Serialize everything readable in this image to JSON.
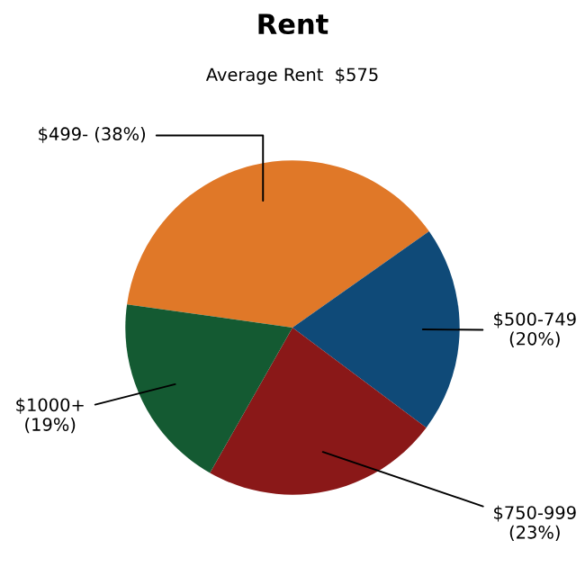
{
  "chart_data": {
    "type": "pie",
    "title": "Rent",
    "subtitle": "Average Rent  $575",
    "categories": [
      "$499-",
      "$500-749",
      "$750-999",
      "$1000+"
    ],
    "values": [
      38,
      20,
      23,
      19
    ],
    "value_labels": [
      "(38%)",
      "(20%)",
      "(23%)",
      "(19%)"
    ],
    "colors": [
      "#e07828",
      "#0f4a78",
      "#8a1818",
      "#145a32"
    ],
    "legend": false
  }
}
